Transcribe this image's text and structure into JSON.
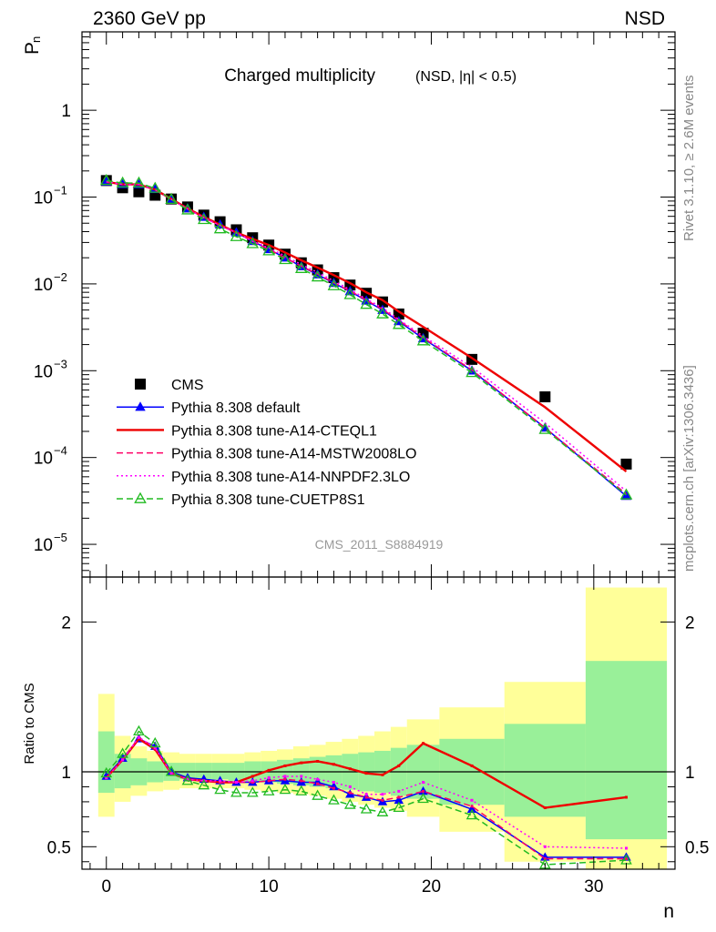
{
  "header": {
    "left": "2360 GeV pp",
    "right": "NSD"
  },
  "side_labels": {
    "rivet": "Rivet 3.1.10, ≥ 2.6M events",
    "mcplots": "mcplots.cern.ch [arXiv:1306.3436]"
  },
  "plot_title": {
    "main": "Charged multiplicity",
    "sub": "(NSD, |η| < 0.5)"
  },
  "watermark": "CMS_2011_S8884919",
  "chart_data": [
    {
      "type": "scatter",
      "ylabel": "P",
      "ylabel_sub": "n",
      "yscale": "log",
      "xlim": [
        -1.5,
        35
      ],
      "ylim": [
        4.2e-06,
        8
      ],
      "ytick_labels": [
        {
          "v": 1,
          "label": "1"
        },
        {
          "v": 0.1,
          "base": "10",
          "exp": "−1"
        },
        {
          "v": 0.01,
          "base": "10",
          "exp": "−2"
        },
        {
          "v": 0.001,
          "base": "10",
          "exp": "−3"
        },
        {
          "v": 0.0001,
          "base": "10",
          "exp": "−4"
        },
        {
          "v": 1e-05,
          "base": "10",
          "exp": "−5"
        }
      ],
      "legend": [
        {
          "label": "CMS",
          "color": "#000000",
          "marker": "square",
          "line": "none"
        },
        {
          "label": "Pythia 8.308 default",
          "color": "#0000ff",
          "marker": "triangle",
          "line": "solid"
        },
        {
          "label": "Pythia 8.308 tune-A14-CTEQL1",
          "color": "#ee0000",
          "marker": "none",
          "line": "solid"
        },
        {
          "label": "Pythia 8.308 tune-A14-MSTW2008LO",
          "color": "#ff0066",
          "marker": "none",
          "line": "dashed"
        },
        {
          "label": "Pythia 8.308 tune-A14-NNPDF2.3LO",
          "color": "#ff00ff",
          "marker": "none",
          "line": "dotted"
        },
        {
          "label": "Pythia 8.308 tune-CUETP8S1",
          "color": "#22bb22",
          "marker": "open-triangle",
          "line": "dashed"
        }
      ],
      "x": [
        0,
        1,
        2,
        3,
        4,
        5,
        6,
        7,
        8,
        9,
        10,
        11,
        12,
        13,
        14,
        15,
        16,
        17,
        18,
        19.5,
        22.5,
        27,
        32
      ],
      "series": [
        {
          "name": "CMS",
          "color": "#000000",
          "values": [
            0.155,
            0.128,
            0.115,
            0.105,
            0.095,
            0.077,
            0.062,
            0.052,
            0.042,
            0.034,
            0.028,
            0.022,
            0.0175,
            0.0145,
            0.0118,
            0.0097,
            0.0078,
            0.0062,
            0.0045,
            0.0027,
            0.00135,
            0.0005,
            8.4e-05
          ]
        },
        {
          "name": "Pythia 8.308 default",
          "color": "#0000ff",
          "values": [
            0.15,
            0.14,
            0.14,
            0.123,
            0.095,
            0.074,
            0.059,
            0.048,
            0.039,
            0.031,
            0.025,
            0.02,
            0.0159,
            0.0128,
            0.0102,
            0.0082,
            0.0064,
            0.005,
            0.0037,
            0.00235,
            0.001,
            0.00022,
            3.6e-05
          ]
        },
        {
          "name": "Pythia 8.308 tune-A14-CTEQL1",
          "color": "#ee0000",
          "values": [
            0.15,
            0.14,
            0.14,
            0.122,
            0.095,
            0.074,
            0.059,
            0.048,
            0.039,
            0.033,
            0.028,
            0.023,
            0.0187,
            0.0154,
            0.0126,
            0.0102,
            0.008,
            0.0065,
            0.0048,
            0.0032,
            0.0014,
            0.00038,
            6.9e-05
          ]
        },
        {
          "name": "Pythia 8.308 tune-A14-MSTW2008LO",
          "color": "#ff0066",
          "values": [
            0.15,
            0.14,
            0.14,
            0.122,
            0.094,
            0.073,
            0.058,
            0.047,
            0.039,
            0.031,
            0.025,
            0.02,
            0.016,
            0.013,
            0.0103,
            0.0083,
            0.0065,
            0.0051,
            0.0038,
            0.0024,
            0.00102,
            0.00022,
            3.8e-05
          ]
        },
        {
          "name": "Pythia 8.308 tune-A14-NNPDF2.3LO",
          "color": "#ff00ff",
          "values": [
            0.15,
            0.14,
            0.14,
            0.122,
            0.094,
            0.073,
            0.058,
            0.047,
            0.039,
            0.031,
            0.026,
            0.021,
            0.0167,
            0.0136,
            0.0108,
            0.0086,
            0.0067,
            0.0053,
            0.0039,
            0.0025,
            0.0011,
            0.00025,
            4.1e-05
          ]
        },
        {
          "name": "Pythia 8.308 tune-CUETP8S1",
          "color": "#22bb22",
          "values": [
            0.155,
            0.145,
            0.145,
            0.126,
            0.094,
            0.071,
            0.055,
            0.043,
            0.035,
            0.029,
            0.024,
            0.019,
            0.015,
            0.012,
            0.0095,
            0.0075,
            0.0058,
            0.0045,
            0.0034,
            0.0022,
            0.00095,
            0.00021,
            3.7e-05
          ]
        }
      ]
    },
    {
      "type": "line",
      "xlabel": "n",
      "ylabel": "Ratio to CMS",
      "xlim": [
        -1.5,
        35
      ],
      "ylim": [
        0.35,
        2.3
      ],
      "xticks": [
        0,
        10,
        20,
        30
      ],
      "yticks": [
        0.5,
        1,
        2
      ],
      "x": [
        0,
        1,
        2,
        3,
        4,
        5,
        6,
        7,
        8,
        9,
        10,
        11,
        12,
        13,
        14,
        15,
        16,
        17,
        18,
        19.5,
        22.5,
        27,
        32
      ],
      "bands": {
        "edges": [
          -0.5,
          0.5,
          1.5,
          2.5,
          3.5,
          4.5,
          5.5,
          6.5,
          7.5,
          8.5,
          9.5,
          10.5,
          11.5,
          12.5,
          13.5,
          14.5,
          15.5,
          16.5,
          17.5,
          18.5,
          20.5,
          24.5,
          29.5,
          34.5
        ],
        "green_low": [
          0.86,
          0.89,
          0.91,
          0.93,
          0.94,
          0.95,
          0.95,
          0.95,
          0.94,
          0.93,
          0.93,
          0.92,
          0.91,
          0.9,
          0.89,
          0.88,
          0.87,
          0.86,
          0.84,
          0.82,
          0.78,
          0.7,
          0.55
        ],
        "green_high": [
          1.27,
          1.12,
          1.09,
          1.07,
          1.06,
          1.06,
          1.06,
          1.06,
          1.06,
          1.07,
          1.07,
          1.08,
          1.09,
          1.1,
          1.11,
          1.12,
          1.13,
          1.14,
          1.16,
          1.18,
          1.22,
          1.32,
          1.74
        ],
        "yellow_low": [
          0.7,
          0.8,
          0.84,
          0.87,
          0.88,
          0.89,
          0.89,
          0.89,
          0.89,
          0.88,
          0.87,
          0.86,
          0.85,
          0.84,
          0.82,
          0.8,
          0.78,
          0.76,
          0.74,
          0.7,
          0.6,
          0.4,
          0.35
        ],
        "yellow_high": [
          1.52,
          1.24,
          1.17,
          1.14,
          1.13,
          1.12,
          1.12,
          1.12,
          1.12,
          1.13,
          1.14,
          1.15,
          1.17,
          1.18,
          1.2,
          1.22,
          1.24,
          1.27,
          1.3,
          1.35,
          1.43,
          1.6,
          2.23
        ]
      },
      "series": [
        {
          "name": "Pythia 8.308 default",
          "color": "#0000ff",
          "values": [
            0.97,
            1.09,
            1.22,
            1.17,
            1.0,
            0.96,
            0.95,
            0.94,
            0.93,
            0.93,
            0.94,
            0.94,
            0.93,
            0.93,
            0.9,
            0.85,
            0.83,
            0.8,
            0.81,
            0.87,
            0.75,
            0.43,
            0.43
          ]
        },
        {
          "name": "Pythia 8.308 tune-A14-CTEQL1",
          "color": "#ee0000",
          "values": [
            0.96,
            1.08,
            1.22,
            1.15,
            0.99,
            0.95,
            0.94,
            0.93,
            0.93,
            0.97,
            1.01,
            1.04,
            1.06,
            1.07,
            1.05,
            1.02,
            0.99,
            0.98,
            1.04,
            1.19,
            1.04,
            0.76,
            0.83
          ]
        },
        {
          "name": "Pythia 8.308 tune-A14-MSTW2008LO",
          "color": "#ff0066",
          "values": [
            0.96,
            1.08,
            1.23,
            1.16,
            0.99,
            0.95,
            0.94,
            0.93,
            0.93,
            0.93,
            0.94,
            0.95,
            0.94,
            0.92,
            0.89,
            0.86,
            0.83,
            0.81,
            0.83,
            0.87,
            0.77,
            0.42,
            0.42
          ]
        },
        {
          "name": "Pythia 8.308 tune-A14-NNPDF2.3LO",
          "color": "#ff00ff",
          "values": [
            0.96,
            1.08,
            1.23,
            1.16,
            0.99,
            0.95,
            0.94,
            0.94,
            0.93,
            0.94,
            0.96,
            0.97,
            0.97,
            0.95,
            0.93,
            0.9,
            0.85,
            0.85,
            0.87,
            0.93,
            0.81,
            0.5,
            0.49
          ]
        },
        {
          "name": "Pythia 8.308 tune-CUETP8S1",
          "color": "#22bb22",
          "values": [
            0.99,
            1.12,
            1.27,
            1.19,
            1.0,
            0.94,
            0.91,
            0.88,
            0.86,
            0.86,
            0.87,
            0.88,
            0.87,
            0.84,
            0.81,
            0.78,
            0.75,
            0.73,
            0.76,
            0.82,
            0.71,
            0.38,
            0.41
          ]
        }
      ]
    }
  ]
}
